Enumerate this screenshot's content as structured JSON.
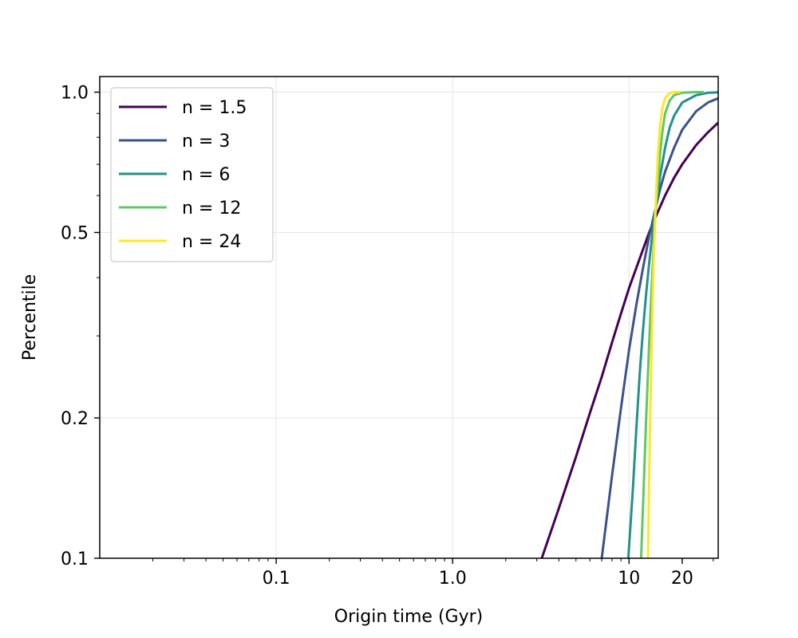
{
  "chart_data": {
    "type": "line",
    "xlabel": "Origin time (Gyr)",
    "ylabel": "Percentile",
    "xscale": "log",
    "yscale": "log",
    "xlim": [
      0.01,
      32
    ],
    "ylim": [
      0.1,
      1.08
    ],
    "x_major_ticks": [
      {
        "value": 0.1,
        "label": "0.1"
      },
      {
        "value": 1.0,
        "label": "1.0"
      },
      {
        "value": 10,
        "label": "10"
      },
      {
        "value": 20,
        "label": "20"
      }
    ],
    "y_major_ticks": [
      {
        "value": 0.1,
        "label": "0.1"
      },
      {
        "value": 0.2,
        "label": "0.2"
      },
      {
        "value": 0.5,
        "label": "0.5"
      },
      {
        "value": 1.0,
        "label": "1.0"
      }
    ],
    "grid": true,
    "legend_position": "top-left",
    "series": [
      {
        "name": "n = 1.5",
        "color": "#440154",
        "x": [
          3.2,
          4,
          5,
          6,
          7,
          8,
          9,
          10,
          11,
          12,
          13,
          14,
          16,
          18,
          20,
          24,
          28,
          32
        ],
        "y": [
          0.1,
          0.128,
          0.165,
          0.205,
          0.245,
          0.29,
          0.335,
          0.38,
          0.42,
          0.46,
          0.5,
          0.535,
          0.6,
          0.655,
          0.7,
          0.77,
          0.82,
          0.86
        ]
      },
      {
        "name": "n = 3",
        "color": "#3b528b",
        "x": [
          7,
          8,
          9,
          10,
          11,
          12,
          13,
          14,
          15,
          16,
          18,
          20,
          24,
          28,
          32
        ],
        "y": [
          0.1,
          0.15,
          0.21,
          0.28,
          0.35,
          0.42,
          0.49,
          0.555,
          0.62,
          0.675,
          0.76,
          0.83,
          0.91,
          0.95,
          0.97
        ]
      },
      {
        "name": "n = 6",
        "color": "#21918c",
        "x": [
          9.9,
          10.5,
          11,
          11.5,
          12,
          12.5,
          13,
          13.5,
          14,
          15,
          16,
          17,
          18,
          20,
          24,
          28,
          32
        ],
        "y": [
          0.1,
          0.14,
          0.19,
          0.25,
          0.31,
          0.37,
          0.43,
          0.49,
          0.55,
          0.66,
          0.76,
          0.84,
          0.89,
          0.95,
          0.985,
          0.997,
          0.999
        ]
      },
      {
        "name": "n = 12",
        "color": "#5ec962",
        "x": [
          11.7,
          12,
          12.5,
          13,
          13.5,
          14,
          14.5,
          15,
          15.5,
          16,
          17,
          18,
          20,
          24,
          26.5
        ],
        "y": [
          0.1,
          0.13,
          0.2,
          0.29,
          0.4,
          0.52,
          0.63,
          0.74,
          0.83,
          0.9,
          0.96,
          0.985,
          0.997,
          1.0,
          1.0
        ]
      },
      {
        "name": "n = 24",
        "color": "#fde725",
        "x": [
          12.8,
          13,
          13.2,
          13.4,
          13.6,
          13.8,
          14,
          14.3,
          14.6,
          15,
          15.5,
          16,
          17,
          18,
          19.5
        ],
        "y": [
          0.1,
          0.15,
          0.21,
          0.28,
          0.36,
          0.44,
          0.52,
          0.63,
          0.74,
          0.85,
          0.93,
          0.97,
          0.995,
          1.0,
          1.0
        ]
      }
    ]
  }
}
